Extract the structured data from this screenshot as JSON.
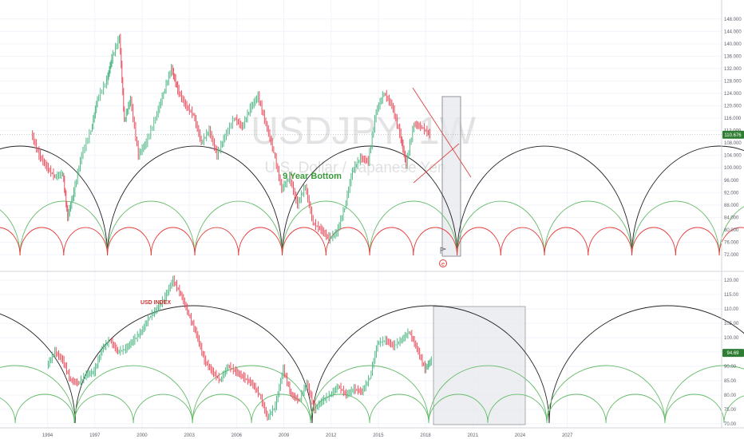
{
  "chart_data": [
    {
      "type": "line",
      "watermark_symbol": "USDJPY, 1W",
      "watermark_name": "U.S. Dollar / Japanese Yen",
      "annotation": "9 Year Bottom",
      "price_badge": "110.676",
      "y_ticks": [
        "148.000",
        "144.000",
        "140.000",
        "136.000",
        "132.000",
        "128.000",
        "124.000",
        "120.000",
        "116.000",
        "112.000",
        "108.000",
        "104.000",
        "100.000",
        "96.000",
        "92.000",
        "88.000",
        "84.000",
        "80.000",
        "76.000",
        "72.000"
      ],
      "ylim": [
        72,
        150
      ],
      "current_value": 110.676,
      "series": [
        {
          "x": [
            1993.0,
            1993.5,
            1994.0,
            1994.5,
            1995.0,
            1995.3,
            1995.7,
            1996.2,
            1996.8,
            1997.2,
            1997.8,
            1998.1,
            1998.6,
            1998.9,
            1999.3,
            1999.8,
            2000.3,
            2000.9,
            2001.4,
            2001.9,
            2002.3,
            2002.8,
            2003.3,
            2003.8,
            2004.3,
            2004.8,
            2005.3,
            2005.9,
            2006.4,
            2006.9,
            2007.4,
            2007.9,
            2008.4,
            2008.9,
            2009.4,
            2009.9,
            2010.4,
            2010.9,
            2011.4,
            2011.9,
            2012.4,
            2012.9,
            2013.4,
            2013.9,
            2014.4,
            2014.9,
            2015.4,
            2015.9,
            2016.4,
            2016.8,
            2017.3,
            2017.8,
            2018.3
          ],
          "y": [
            111,
            104,
            100,
            97,
            98,
            84,
            92,
            104,
            112,
            122,
            128,
            135,
            142,
            115,
            122,
            104,
            108,
            116,
            124,
            132,
            125,
            120,
            117,
            108,
            112,
            104,
            110,
            116,
            113,
            119,
            123,
            114,
            105,
            93,
            97,
            88,
            94,
            82,
            80,
            77,
            79,
            87,
            99,
            103,
            102,
            118,
            124,
            120,
            111,
            101,
            114,
            113,
            110.7
          ]
        }
      ]
    },
    {
      "type": "line",
      "title": "USD INDEX",
      "price_badge": "94.69",
      "y_ticks": [
        "120.00",
        "115.00",
        "110.00",
        "105.00",
        "100.00",
        "95.00",
        "90.00",
        "85.00",
        "80.00",
        "75.00",
        "70.00"
      ],
      "ylim": [
        68,
        122
      ],
      "current_value": 94.69,
      "series": [
        {
          "x": [
            1994.0,
            1994.5,
            1995.0,
            1995.5,
            1996.0,
            1996.5,
            1997.0,
            1997.5,
            1998.0,
            1998.5,
            1999.0,
            1999.5,
            2000.0,
            2000.5,
            2001.0,
            2001.5,
            2002.0,
            2002.5,
            2003.0,
            2003.5,
            2004.0,
            2004.5,
            2005.0,
            2005.5,
            2006.0,
            2006.5,
            2007.0,
            2007.5,
            2008.0,
            2008.5,
            2009.0,
            2009.5,
            2010.0,
            2010.5,
            2011.0,
            2011.5,
            2012.0,
            2012.5,
            2013.0,
            2013.5,
            2014.0,
            2014.5,
            2015.0,
            2015.5,
            2016.0,
            2016.5,
            2017.0,
            2017.5,
            2018.0,
            2018.4
          ],
          "y": [
            90,
            95,
            92,
            85,
            84,
            87,
            88,
            96,
            99,
            95,
            96,
            99,
            102,
            107,
            110,
            114,
            120,
            115,
            108,
            101,
            92,
            88,
            85,
            90,
            88,
            86,
            84,
            80,
            72,
            76,
            89,
            80,
            78,
            84,
            75,
            78,
            80,
            83,
            80,
            82,
            81,
            86,
            98,
            99,
            97,
            99,
            102,
            96,
            89,
            92
          ]
        }
      ]
    },
    {
      "type": "line",
      "x_ticks": [
        "1994",
        "1997",
        "2000",
        "2003",
        "2006",
        "2009",
        "2012",
        "2015",
        "2018",
        "2021",
        "2024",
        "2027"
      ],
      "xlim": [
        1990.98,
        2036.8
      ]
    }
  ]
}
